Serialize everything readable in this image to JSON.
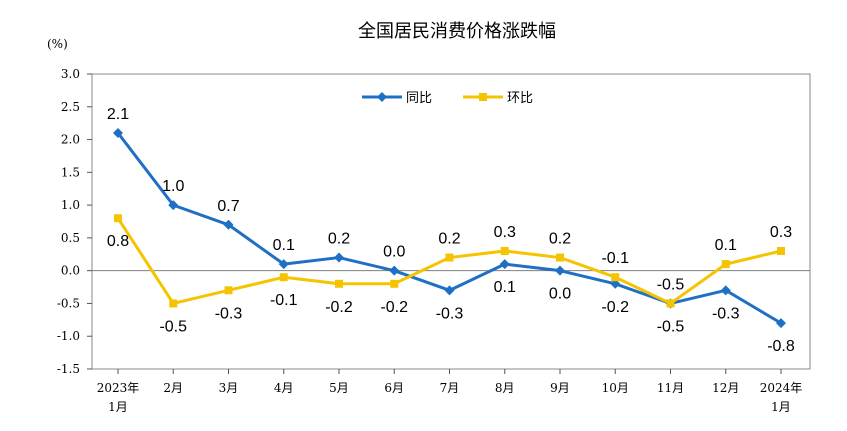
{
  "chart_data": {
    "type": "line",
    "title": "全国居民消费价格涨跌幅",
    "unit": "(%)",
    "categories": [
      [
        "2023年",
        "1月"
      ],
      [
        "2月"
      ],
      [
        "3月"
      ],
      [
        "4月"
      ],
      [
        "5月"
      ],
      [
        "6月"
      ],
      [
        "7月"
      ],
      [
        "8月"
      ],
      [
        "9月"
      ],
      [
        "10月"
      ],
      [
        "11月"
      ],
      [
        "12月"
      ],
      [
        "2024年",
        "1月"
      ]
    ],
    "ylim": [
      -1.5,
      3.0
    ],
    "yticks": [
      "3.0",
      "2.5",
      "2.0",
      "1.5",
      "1.0",
      "0.5",
      "0.0",
      "-0.5",
      "-1.0",
      "-1.5"
    ],
    "grid": false,
    "legend": {
      "position": "top-center"
    },
    "series": [
      {
        "name": "同比",
        "color": "#1f6fc5",
        "marker": "diamond",
        "values": [
          2.1,
          1.0,
          0.7,
          0.1,
          0.2,
          0.0,
          -0.3,
          0.1,
          0.0,
          -0.2,
          -0.5,
          -0.3,
          -0.8
        ],
        "labels": [
          "2.1",
          "1.0",
          "0.7",
          "0.1",
          "0.2",
          "0.0",
          "-0.3",
          "0.1",
          "0.0",
          "-0.2",
          "-0.5",
          "-0.3",
          "-0.8"
        ]
      },
      {
        "name": "环比",
        "color": "#f5c400",
        "marker": "square",
        "values": [
          0.8,
          -0.5,
          -0.3,
          -0.1,
          -0.2,
          -0.2,
          0.2,
          0.3,
          0.2,
          -0.1,
          -0.5,
          0.1,
          0.3
        ],
        "labels": [
          "0.8",
          "-0.5",
          "-0.3",
          "-0.1",
          "-0.2",
          "-0.2",
          "0.2",
          "0.3",
          "0.2",
          "-0.1",
          "-0.5",
          "0.1",
          "0.3"
        ]
      }
    ]
  }
}
